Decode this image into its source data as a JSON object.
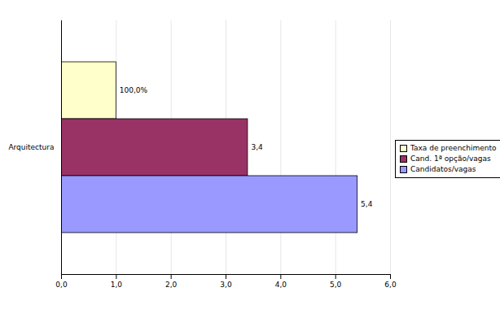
{
  "chart_data": {
    "type": "bar",
    "orientation": "horizontal",
    "categories": [
      "Arquitectura"
    ],
    "series": [
      {
        "name": "Taxa de preenchimento",
        "color": "#ffffcc",
        "values": [
          1.0
        ],
        "value_labels": [
          "100,0%"
        ]
      },
      {
        "name": "Cand. 1ª opção/vagas",
        "color": "#993366",
        "values": [
          3.4
        ],
        "value_labels": [
          "3,4"
        ]
      },
      {
        "name": "Candidatos/vagas",
        "color": "#9999ff",
        "values": [
          5.4
        ],
        "value_labels": [
          "5,4"
        ]
      }
    ],
    "xlim": [
      0,
      6
    ],
    "xticks": [
      {
        "value": 0,
        "label": "0,0"
      },
      {
        "value": 1,
        "label": "1,0"
      },
      {
        "value": 2,
        "label": "2,0"
      },
      {
        "value": 3,
        "label": "3,0"
      },
      {
        "value": 4,
        "label": "4,0"
      },
      {
        "value": 5,
        "label": "5,0"
      },
      {
        "value": 6,
        "label": "6,0"
      }
    ],
    "grid": true,
    "legend": "right",
    "data_labels": true
  }
}
